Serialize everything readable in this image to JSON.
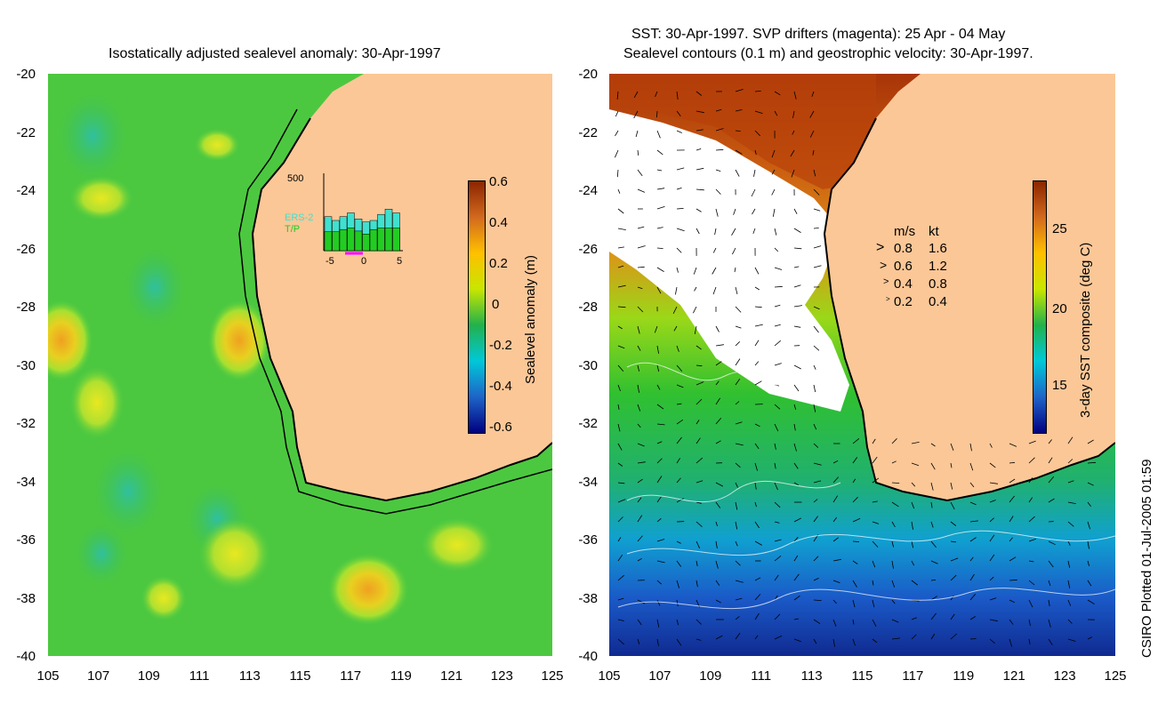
{
  "left_panel": {
    "title": "Isostatically adjusted sealevel anomaly: 30-Apr-1997",
    "colorbar": {
      "label": "Sealevel anomaly (m)",
      "ticks": [
        "0.6",
        "0.4",
        "0.2",
        "0",
        "-0.2",
        "-0.4",
        "-0.6"
      ],
      "colors": [
        "#8b2500",
        "#d2691e",
        "#ffc000",
        "#c8e600",
        "#22b14c",
        "#00c8d8",
        "#1e64c8",
        "#000080"
      ]
    },
    "inset": {
      "ymax_label": "500",
      "x_ticks": [
        "-5",
        "0",
        "5"
      ],
      "legend": [
        "ERS-2",
        "T/P"
      ],
      "ers2_color": "#40e0d0",
      "tp_color": "#22cc22",
      "ers2_values": [
        0.45,
        0.4,
        0.45,
        0.5,
        0.42,
        0.38,
        0.4,
        0.48,
        0.55,
        0.5
      ],
      "tp_values": [
        0.25,
        0.25,
        0.28,
        0.3,
        0.26,
        0.22,
        0.28,
        0.3,
        0.3,
        0.3
      ]
    }
  },
  "right_panel": {
    "title_line1": "SST: 30-Apr-1997. SVP drifters (magenta): 25 Apr - 04 May",
    "title_line2": "Sealevel contours (0.1 m) and geostrophic velocity: 30-Apr-1997.",
    "colorbar": {
      "label": "3-day SST composite (deg C)",
      "ticks": [
        "25",
        "20",
        "15"
      ],
      "colors": [
        "#8b2500",
        "#d2691e",
        "#ffc000",
        "#c8e600",
        "#22b14c",
        "#00c8d8",
        "#1e64c8",
        "#000080"
      ]
    },
    "velocity_legend": {
      "header_ms": "m/s",
      "header_kt": "kt",
      "rows": [
        {
          "ms": "0.8",
          "kt": "1.6"
        },
        {
          "ms": "0.6",
          "kt": "1.2"
        },
        {
          "ms": "0.4",
          "kt": "0.8"
        },
        {
          "ms": "0.2",
          "kt": "0.4"
        }
      ]
    }
  },
  "axes": {
    "y_ticks": [
      "-20",
      "-22",
      "-24",
      "-26",
      "-28",
      "-30",
      "-32",
      "-34",
      "-36",
      "-38",
      "-40"
    ],
    "x_ticks": [
      "105",
      "107",
      "109",
      "111",
      "113",
      "115",
      "117",
      "119",
      "121",
      "123",
      "125"
    ]
  },
  "credit": "CSIRO Plotted 01-Jul-2005 01:59",
  "colors": {
    "land": "#fbc797",
    "ocean_green": "#3cc83c",
    "sst_warm": "#b03a0a",
    "sst_cool": "#1e50c8",
    "cloud": "#ffffff"
  }
}
